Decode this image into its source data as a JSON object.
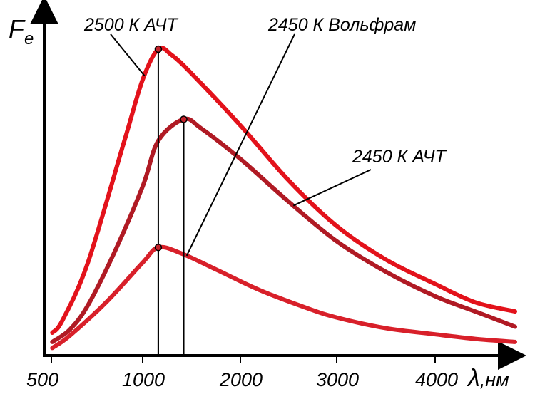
{
  "chart_data": {
    "type": "line",
    "ylabel": "F",
    "ylabel_sub": "e",
    "xlabel_symbol": "λ",
    "xlabel_unit": ",нм",
    "x_ticks": [
      "500",
      "1000",
      "2000",
      "3000",
      "4000"
    ],
    "x_tick_values": [
      500,
      1000,
      2000,
      3000,
      4000
    ],
    "xlim": [
      500,
      5000
    ],
    "ylim": [
      0,
      100
    ],
    "grid": false,
    "series": [
      {
        "name": "2500 К АЧТ",
        "color": "#e3121b",
        "peak_x": 1160,
        "x": [
          505,
          560,
          700,
          900,
          1000,
          1160,
          1300,
          1500,
          2000,
          2500,
          3000,
          3500,
          4000,
          4500,
          5000
        ],
        "y": [
          7,
          11,
          30,
          70,
          90,
          100,
          98,
          92,
          75,
          57,
          42,
          31,
          23,
          17,
          14
        ]
      },
      {
        "name": "2450 К Вольфрам",
        "color": "#b01a24",
        "peak_x": 1420,
        "x": [
          505,
          600,
          700,
          850,
          1000,
          1160,
          1420,
          1600,
          2000,
          2500,
          3000,
          3500,
          4000,
          4500,
          5000
        ],
        "y": [
          4,
          8,
          16,
          34,
          55,
          70,
          77,
          74,
          64,
          50,
          37,
          27,
          19,
          14,
          9
        ]
      },
      {
        "name": "2450 К АЧТ",
        "color": "#d8202a",
        "peak_x": 1160,
        "x": [
          505,
          600,
          800,
          1000,
          1160,
          1400,
          1800,
          2200,
          2700,
          3000,
          3500,
          4000,
          4500,
          5000
        ],
        "y": [
          2,
          6,
          17,
          30,
          35,
          33,
          27,
          21,
          15,
          12,
          8.5,
          6.5,
          5,
          4
        ]
      }
    ]
  }
}
